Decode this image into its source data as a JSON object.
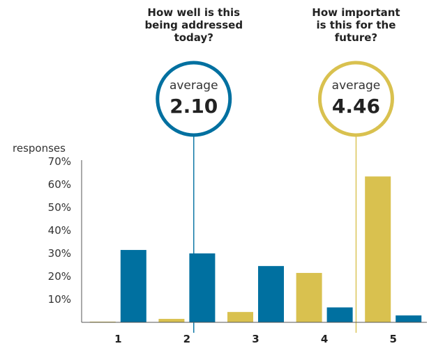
{
  "colors": {
    "yellow": "#d9c14f",
    "blue": "#0070a0",
    "axis": "#555555"
  },
  "chart_data": {
    "type": "bar",
    "ylabel": "responses",
    "ytick_labels": [
      "10%",
      "20%",
      "30%",
      "40%",
      "50%",
      "60%",
      "70%"
    ],
    "ylim": [
      0,
      0.72
    ],
    "categories": [
      "1",
      "2",
      "3",
      "4",
      "5"
    ],
    "series": [
      {
        "key": "future",
        "color": "#d9c14f",
        "values": [
          0.002,
          0.015,
          0.045,
          0.215,
          0.635
        ]
      },
      {
        "key": "today",
        "color": "#0070a0",
        "values": [
          0.315,
          0.3,
          0.245,
          0.065,
          0.03
        ]
      }
    ],
    "annotations": [
      {
        "key": "today",
        "heading": [
          "How well is this",
          "being addressed",
          "today?"
        ],
        "label": "average",
        "value": "2.10",
        "x_value": 2.1,
        "color": "#0070a0"
      },
      {
        "key": "future",
        "heading": [
          "How important",
          "is this for the",
          "future?"
        ],
        "label": "average",
        "value": "4.46",
        "x_value": 4.46,
        "color": "#d9c14f"
      }
    ]
  }
}
